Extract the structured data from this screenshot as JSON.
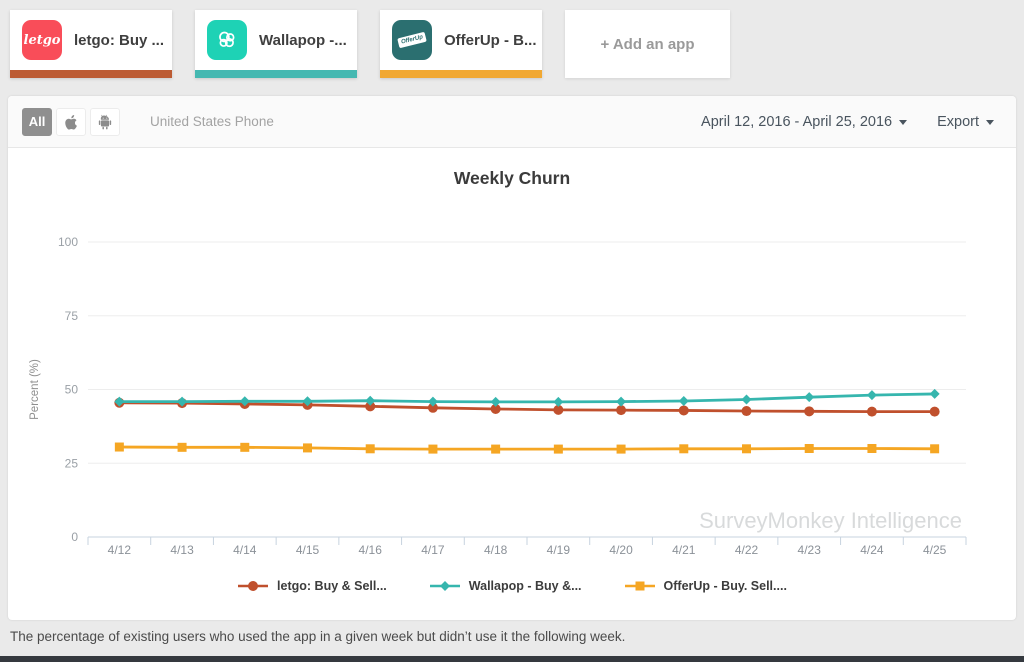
{
  "tabs": {
    "items": [
      {
        "label": "letgo: Buy ...",
        "icon_text": "letgo",
        "accent": "#bc5b33",
        "icon_bg": "#f94d59"
      },
      {
        "label": "Wallapop -...",
        "icon_text": "",
        "accent": "#45b8b1",
        "icon_bg": "#1ed2b5"
      },
      {
        "label": "OfferUp - B...",
        "icon_text": "OfferUp",
        "accent": "#f1a832",
        "icon_bg": "#2b6f70"
      }
    ],
    "add_label": "+ Add an app"
  },
  "filterbar": {
    "all_label": "All",
    "scope_label": "United States Phone",
    "date_range": "April 12, 2016 - April 25, 2016",
    "export_label": "Export"
  },
  "chart_data": {
    "type": "line",
    "title": "Weekly Churn",
    "ylabel": "Percent (%)",
    "ylim": [
      0,
      100
    ],
    "yticks": [
      0,
      25,
      50,
      75,
      100
    ],
    "grid": true,
    "legend_position": "bottom",
    "watermark": "SurveyMonkey Intelligence",
    "categories": [
      "4/12",
      "4/13",
      "4/14",
      "4/15",
      "4/16",
      "4/17",
      "4/18",
      "4/19",
      "4/20",
      "4/21",
      "4/22",
      "4/23",
      "4/24",
      "4/25"
    ],
    "series": [
      {
        "name": "letgo: Buy & Sell...",
        "slug": "letgo",
        "color": "#c0502d",
        "marker": "circle",
        "values": [
          45.5,
          45.4,
          45.1,
          44.8,
          44.3,
          43.8,
          43.4,
          43.1,
          43.0,
          42.9,
          42.7,
          42.6,
          42.5,
          42.5
        ]
      },
      {
        "name": "Wallapop - Buy &...",
        "slug": "wallapop",
        "color": "#36b6ae",
        "marker": "diamond",
        "values": [
          45.9,
          45.9,
          46.0,
          46.0,
          46.2,
          45.9,
          45.8,
          45.8,
          45.9,
          46.1,
          46.6,
          47.4,
          48.1,
          48.5
        ]
      },
      {
        "name": "OfferUp - Buy. Sell....",
        "slug": "offerup",
        "color": "#f5a623",
        "marker": "square",
        "values": [
          30.5,
          30.4,
          30.4,
          30.2,
          29.9,
          29.8,
          29.8,
          29.8,
          29.8,
          29.9,
          29.9,
          30.0,
          30.0,
          29.9
        ]
      }
    ],
    "colors": {
      "grid": "#ededed",
      "axis": "#c7d3df",
      "tick_label": "#8b9198",
      "watermark": "#d8dadb"
    }
  },
  "footer": {
    "description": "The percentage of existing users who used the app in a given week but didn’t use it the following week."
  }
}
